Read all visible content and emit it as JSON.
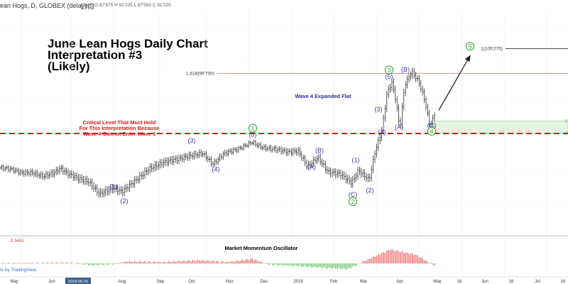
{
  "header": {
    "symbol": "ean Hogs, D, GLOBEX (delayed)",
    "ohlc": "O 87'875  H 91'225  L 87'550  C 91'225"
  },
  "annotations": {
    "title_lines": [
      "June Lean Hogs Daily Chart",
      "Interpretation #3",
      "(Likely)"
    ],
    "wave4_note": "Wave 4 Expanded Flat",
    "critical_lines": [
      "Critical Level That Must Hold",
      "For This Interpretation Because",
      "Wave 4 Cannot Enter Wave 1"
    ],
    "fib_label": "1.618(99'700)",
    "target_label": "1(105'275)",
    "oscillator_title": "Market Momentum Oscillator",
    "oscillator_value": "-3.3453",
    "attribution": "ts by TradingView",
    "green_box_label_top": "0",
    "green_box_label_bottom": "0"
  },
  "colors": {
    "price_bars": "#111111",
    "wave_labels": "#3a3aa6",
    "green_labels": "#2aa02a",
    "critical_line": "#e01010",
    "fib_line": "#d77a7a",
    "target_line": "#333333",
    "zone_fill": "#e6f5e3",
    "osc_up": "#f08080",
    "osc_down": "#80cc80",
    "axis_text": "#333333"
  },
  "chart_data": {
    "type": "ohlc",
    "title": "June Lean Hogs Daily Chart",
    "x_axis_ticks": [
      "May",
      "Jun",
      "2018-06-25",
      "Aug",
      "Sep",
      "Oct",
      "Nov",
      "Dec",
      "2019",
      "Feb",
      "Mar",
      "Apr",
      "May",
      "16",
      "Jun",
      "16",
      "Jul",
      "16"
    ],
    "price_path": [
      [
        0,
        78.5
      ],
      [
        15,
        78.0
      ],
      [
        30,
        77.2
      ],
      [
        45,
        77.5
      ],
      [
        60,
        76.8
      ],
      [
        75,
        77.3
      ],
      [
        85,
        78.2
      ],
      [
        95,
        77.0
      ],
      [
        110,
        76.0
      ],
      [
        125,
        75.5
      ],
      [
        140,
        72.8
      ],
      [
        158,
        73.8
      ],
      [
        172,
        72.9
      ],
      [
        190,
        75.5
      ],
      [
        210,
        78.5
      ],
      [
        230,
        79.7
      ],
      [
        250,
        80.2
      ],
      [
        268,
        81.2
      ],
      [
        285,
        82.0
      ],
      [
        300,
        79.4
      ],
      [
        315,
        81.5
      ],
      [
        335,
        82.5
      ],
      [
        355,
        84.4
      ],
      [
        370,
        83.2
      ],
      [
        390,
        82.5
      ],
      [
        405,
        81.8
      ],
      [
        420,
        82.2
      ],
      [
        433,
        79.0
      ],
      [
        448,
        81.0
      ],
      [
        462,
        77.5
      ],
      [
        480,
        76.8
      ],
      [
        495,
        75.0
      ],
      [
        505,
        78.0
      ],
      [
        520,
        76.0
      ],
      [
        528,
        82.0
      ],
      [
        538,
        87.0
      ],
      [
        545,
        95.0
      ],
      [
        552,
        97.5
      ],
      [
        558,
        93.0
      ],
      [
        563,
        87.0
      ],
      [
        570,
        97.0
      ],
      [
        580,
        100.2
      ],
      [
        590,
        98.0
      ],
      [
        598,
        94.0
      ],
      [
        606,
        87.8
      ],
      [
        612,
        90.5
      ]
    ],
    "wave_labels": [
      {
        "text": "(1)",
        "x": 160,
        "y": 74.2
      },
      {
        "text": "(2)",
        "x": 175,
        "y": 71.0
      },
      {
        "text": "(3)",
        "x": 270,
        "y": 84.6
      },
      {
        "text": "(4)",
        "x": 304,
        "y": 78.1
      },
      {
        "text": "(5)",
        "x": 356,
        "y": 86.0
      },
      {
        "text": "1",
        "x": 356,
        "y": 87.4,
        "circled": true
      },
      {
        "text": "(B)",
        "x": 450,
        "y": 82.4
      },
      {
        "text": "(A)",
        "x": 439,
        "y": 78.6
      },
      {
        "text": "(1)",
        "x": 501,
        "y": 80.2
      },
      {
        "text": "(C)",
        "x": 497,
        "y": 72.5
      },
      {
        "text": "2",
        "x": 497,
        "y": 70.9,
        "circled": true
      },
      {
        "text": "(2)",
        "x": 521,
        "y": 73.4
      },
      {
        "text": "(3)",
        "x": 533,
        "y": 91.6
      },
      {
        "text": "(4)",
        "x": 538,
        "y": 86.5
      },
      {
        "text": "(5)",
        "x": 548,
        "y": 99.0
      },
      {
        "text": "3",
        "x": 548,
        "y": 100.5,
        "circled": true
      },
      {
        "text": "(B)",
        "x": 571,
        "y": 100.6
      },
      {
        "text": "(A)",
        "x": 562,
        "y": 87.6
      },
      {
        "text": "(C)",
        "x": 608,
        "y": 88.0
      },
      {
        "text": "4",
        "x": 608,
        "y": 86.7,
        "circled": true
      },
      {
        "text": "5",
        "x": 662,
        "y": 105.8,
        "circled": true
      }
    ],
    "levels": {
      "critical": 86.2,
      "fib_1618": 99.7,
      "target_1": 105.275,
      "green_zone": [
        86.2,
        89.0
      ]
    },
    "projection": {
      "from": [
        618,
        91.4
      ],
      "to": [
        662,
        103.7
      ]
    },
    "oscillator_profile": [
      [
        0,
        0
      ],
      [
        100,
        0.1
      ],
      [
        130,
        -0.3
      ],
      [
        160,
        -0.1
      ],
      [
        180,
        0.3
      ],
      [
        230,
        0.2
      ],
      [
        280,
        0.5
      ],
      [
        320,
        0.2
      ],
      [
        355,
        0.7
      ],
      [
        380,
        -0.2
      ],
      [
        420,
        -0.4
      ],
      [
        460,
        -0.7
      ],
      [
        490,
        -0.9
      ],
      [
        510,
        0.2
      ],
      [
        530,
        1.2
      ],
      [
        550,
        2.2
      ],
      [
        565,
        1.8
      ],
      [
        585,
        1.4
      ],
      [
        600,
        0.4
      ],
      [
        612,
        -0.3
      ]
    ]
  }
}
